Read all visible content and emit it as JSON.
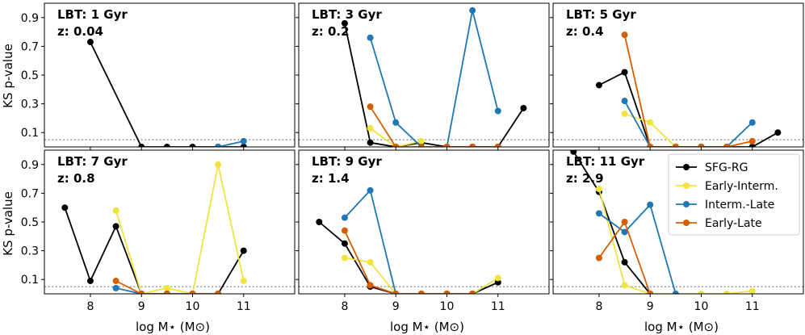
{
  "chart_data": {
    "type": "line",
    "ylabel": "KS p-value",
    "xlabel": "log M⋆ (M⊙)",
    "xlim": [
      7.1,
      12.0
    ],
    "ylim": [
      0.0,
      1.0
    ],
    "xticks": [
      8,
      9,
      10,
      11
    ],
    "xtick_labels": [
      "8",
      "9",
      "10",
      "11"
    ],
    "yticks": [
      0.1,
      0.3,
      0.5,
      0.7,
      0.9
    ],
    "ytick_labels": [
      "0.1",
      "0.3",
      "0.5",
      "0.7",
      "0.9"
    ],
    "reference_line": 0.05,
    "legend": {
      "panel": 5,
      "position": "top-right",
      "entries": [
        "SFG-RG",
        "Early-Interm.",
        "Interm.-Late",
        "Early-Late"
      ]
    },
    "series_styles": [
      {
        "name": "SFG-RG",
        "color": "#000000"
      },
      {
        "name": "Early-Interm.",
        "color": "#f0e442"
      },
      {
        "name": "Interm.-Late",
        "color": "#1f77b4"
      },
      {
        "name": "Early-Late",
        "color": "#d55e00"
      }
    ],
    "panels": [
      {
        "label_line1": "LBT: 1 Gyr",
        "label_line2": "z: 0.04",
        "series": [
          {
            "name": "SFG-RG",
            "x": [
              8.0,
              9.0,
              9.5,
              10.0,
              10.5,
              11.0
            ],
            "y": [
              0.73,
              0.0,
              0.0,
              0.0,
              0.0,
              0.0
            ]
          },
          {
            "name": "Interm.-Late",
            "x": [
              10.5,
              11.0
            ],
            "y": [
              0.0,
              0.04
            ]
          }
        ]
      },
      {
        "label_line1": "LBT: 3 Gyr",
        "label_line2": "z: 0.2",
        "series": [
          {
            "name": "SFG-RG",
            "x": [
              8.0,
              8.5,
              9.0,
              9.5,
              10.0,
              10.5,
              11.0,
              11.5
            ],
            "y": [
              0.86,
              0.03,
              0.0,
              0.03,
              0.0,
              0.0,
              0.0,
              0.27
            ]
          },
          {
            "name": "Early-Interm.",
            "x": [
              8.5,
              9.0,
              9.5
            ],
            "y": [
              0.13,
              0.0,
              0.04
            ]
          },
          {
            "name": "Interm.-Late",
            "x": [
              8.5,
              9.0,
              9.5,
              10.0,
              10.5,
              11.0
            ],
            "y": [
              0.76,
              0.17,
              0.0,
              0.0,
              0.95,
              0.25
            ]
          },
          {
            "name": "Early-Late",
            "x": [
              8.5,
              9.0,
              9.5,
              10.0,
              10.5,
              11.0
            ],
            "y": [
              0.28,
              0.0,
              0.0,
              0.0,
              0.0,
              0.0
            ]
          }
        ]
      },
      {
        "label_line1": "LBT: 5 Gyr",
        "label_line2": "z: 0.4",
        "series": [
          {
            "name": "SFG-RG",
            "x": [
              8.0,
              8.5,
              9.0,
              9.5,
              10.0,
              10.5,
              11.0,
              11.5
            ],
            "y": [
              0.43,
              0.52,
              0.0,
              0.0,
              0.0,
              0.0,
              0.0,
              0.1
            ]
          },
          {
            "name": "Early-Interm.",
            "x": [
              8.5,
              9.0,
              9.5
            ],
            "y": [
              0.23,
              0.17,
              0.0
            ]
          },
          {
            "name": "Interm.-Late",
            "x": [
              8.5,
              9.0,
              9.5,
              10.0,
              10.5,
              11.0
            ],
            "y": [
              0.32,
              0.0,
              0.0,
              0.0,
              0.0,
              0.17
            ]
          },
          {
            "name": "Early-Late",
            "x": [
              8.5,
              9.0,
              9.5,
              10.0,
              10.5,
              11.0
            ],
            "y": [
              0.78,
              0.0,
              0.0,
              0.0,
              0.0,
              0.04
            ]
          }
        ]
      },
      {
        "label_line1": "LBT: 7 Gyr",
        "label_line2": "z: 0.8",
        "series": [
          {
            "name": "SFG-RG",
            "x": [
              7.5,
              8.0,
              8.5,
              9.0,
              9.5,
              10.0,
              10.5,
              11.0
            ],
            "y": [
              0.6,
              0.09,
              0.47,
              0.0,
              0.0,
              0.0,
              0.0,
              0.3
            ]
          },
          {
            "name": "Early-Interm.",
            "x": [
              8.5,
              9.0,
              9.5,
              10.0,
              10.5,
              11.0
            ],
            "y": [
              0.58,
              0.0,
              0.04,
              0.0,
              0.9,
              0.09
            ]
          },
          {
            "name": "Interm.-Late",
            "x": [
              8.5,
              9.0,
              9.5,
              10.0,
              10.5
            ],
            "y": [
              0.04,
              0.0,
              0.0,
              0.0,
              0.0
            ]
          },
          {
            "name": "Early-Late",
            "x": [
              8.5,
              9.0,
              9.5,
              10.0,
              10.5
            ],
            "y": [
              0.09,
              0.0,
              0.0,
              0.0,
              0.0
            ]
          }
        ]
      },
      {
        "label_line1": "LBT: 9 Gyr",
        "label_line2": "z: 1.4",
        "series": [
          {
            "name": "SFG-RG",
            "x": [
              7.5,
              8.0,
              8.5,
              9.0,
              9.5,
              10.0,
              10.5,
              11.0
            ],
            "y": [
              0.5,
              0.35,
              0.05,
              0.0,
              0.0,
              0.0,
              0.0,
              0.08
            ]
          },
          {
            "name": "Early-Interm.",
            "x": [
              8.0,
              8.5,
              9.0,
              9.5,
              10.0,
              10.5,
              11.0
            ],
            "y": [
              0.25,
              0.22,
              0.0,
              0.0,
              0.0,
              0.0,
              0.11
            ]
          },
          {
            "name": "Interm.-Late",
            "x": [
              8.0,
              8.5,
              9.0,
              9.5,
              10.0,
              10.5
            ],
            "y": [
              0.53,
              0.72,
              0.0,
              0.0,
              0.0,
              0.0
            ]
          },
          {
            "name": "Early-Late",
            "x": [
              8.0,
              8.5,
              9.0,
              9.5,
              10.0,
              10.5
            ],
            "y": [
              0.44,
              0.06,
              0.0,
              0.0,
              0.0,
              0.0
            ]
          }
        ]
      },
      {
        "label_line1": "LBT: 11 Gyr",
        "label_line2": "z: 2.9",
        "series": [
          {
            "name": "SFG-RG",
            "x": [
              7.5,
              8.0,
              8.5,
              9.0
            ],
            "y": [
              0.99,
              0.71,
              0.22,
              0.0
            ]
          },
          {
            "name": "Early-Interm.",
            "x": [
              8.0,
              8.5,
              9.0,
              9.5,
              10.0,
              10.5,
              11.0
            ],
            "y": [
              0.73,
              0.06,
              0.0,
              0.0,
              0.0,
              0.0,
              0.02
            ]
          },
          {
            "name": "Interm.-Late",
            "x": [
              8.0,
              8.5,
              9.0,
              9.5
            ],
            "y": [
              0.56,
              0.43,
              0.62,
              0.0
            ]
          },
          {
            "name": "Early-Late",
            "x": [
              8.0,
              8.5,
              9.0
            ],
            "y": [
              0.25,
              0.5,
              0.0
            ]
          }
        ]
      }
    ]
  }
}
